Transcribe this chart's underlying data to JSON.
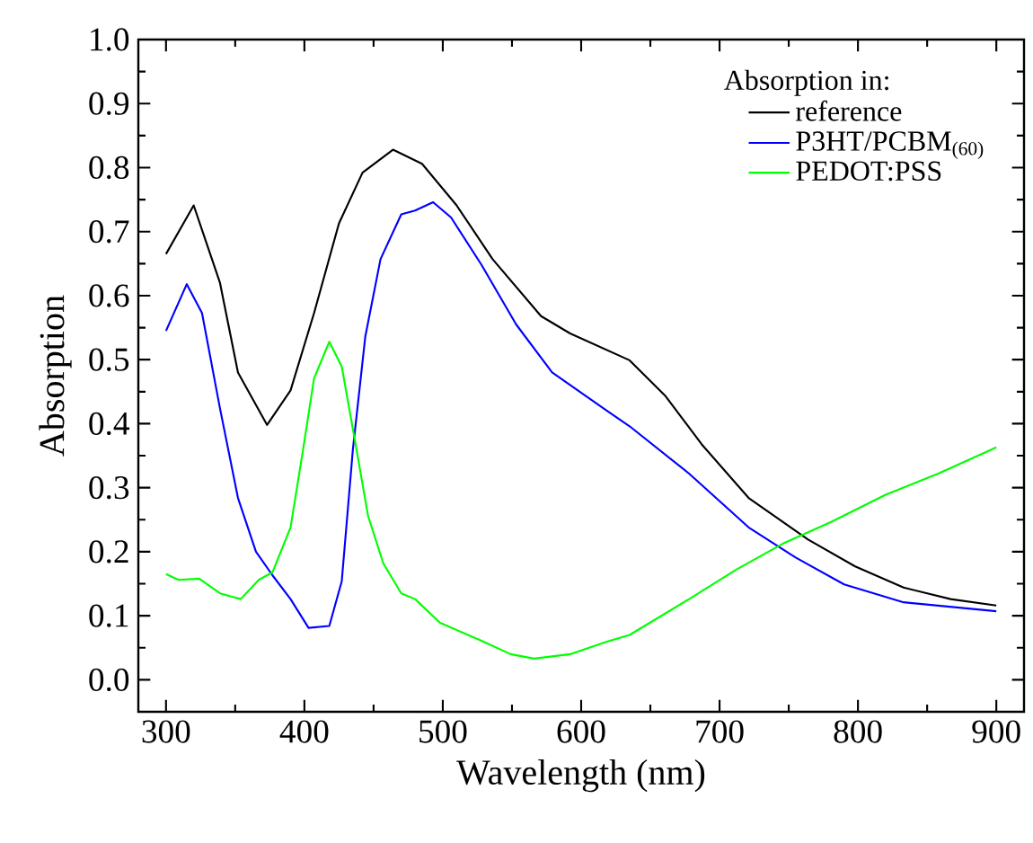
{
  "chart_data": {
    "type": "line",
    "xlabel": "Wavelength (nm)",
    "ylabel": "Absorption",
    "legend_title": "Absorption in:",
    "legend": "top right",
    "xlim": [
      280,
      920
    ],
    "ylim": [
      -0.05,
      1.0
    ],
    "xticks": [
      300,
      400,
      500,
      600,
      700,
      800,
      900
    ],
    "yticks": [
      {
        "value": 0,
        "label": "0.0"
      },
      {
        "value": 0.1,
        "label": "0.1"
      },
      {
        "value": 0.2,
        "label": "0.2"
      },
      {
        "value": 0.3,
        "label": "0.3"
      },
      {
        "value": 0.4,
        "label": "0.4"
      },
      {
        "value": 0.5,
        "label": "0.5"
      },
      {
        "value": 0.6,
        "label": "0.6"
      },
      {
        "value": 0.7,
        "label": "0.7"
      },
      {
        "value": 0.8,
        "label": "0.8"
      },
      {
        "value": 0.9,
        "label": "0.9"
      },
      {
        "value": 1,
        "label": "1.0"
      }
    ],
    "series": [
      {
        "name": "reference",
        "color": "#000000",
        "x": [
          300,
          320,
          339,
          352,
          373,
          390,
          407,
          425,
          442,
          464,
          485,
          510,
          536,
          571,
          592,
          635,
          661,
          687,
          721,
          764,
          798,
          833,
          867,
          900
        ],
        "values": [
          0.665,
          0.741,
          0.62,
          0.48,
          0.398,
          0.452,
          0.573,
          0.713,
          0.792,
          0.828,
          0.806,
          0.741,
          0.657,
          0.568,
          0.541,
          0.499,
          0.443,
          0.368,
          0.284,
          0.219,
          0.177,
          0.144,
          0.126,
          0.116
        ]
      },
      {
        "name": "P3HT/PCBM$_{(60)}$",
        "color": "#0000ff",
        "x": [
          300,
          315,
          326,
          339,
          352,
          365,
          377,
          390,
          403,
          418,
          427,
          435,
          444,
          455,
          470,
          480,
          493,
          506,
          528,
          553,
          579,
          618,
          635,
          678,
          721,
          755,
          790,
          833,
          900
        ],
        "values": [
          0.545,
          0.618,
          0.573,
          0.424,
          0.284,
          0.2,
          0.163,
          0.126,
          0.081,
          0.084,
          0.154,
          0.359,
          0.536,
          0.657,
          0.727,
          0.733,
          0.746,
          0.722,
          0.648,
          0.555,
          0.48,
          0.421,
          0.396,
          0.322,
          0.238,
          0.191,
          0.149,
          0.121,
          0.107
        ]
      },
      {
        "name": "PEDOT:PSS",
        "color": "#00ff00",
        "x": [
          300,
          309,
          324,
          339,
          354,
          367,
          377,
          390,
          399,
          407,
          418,
          427,
          437,
          446,
          457,
          470,
          480,
          498,
          528,
          549,
          566,
          592,
          618,
          635,
          678,
          712,
          747,
          781,
          820,
          858,
          900
        ],
        "values": [
          0.165,
          0.156,
          0.158,
          0.135,
          0.126,
          0.156,
          0.168,
          0.238,
          0.359,
          0.471,
          0.528,
          0.489,
          0.368,
          0.256,
          0.182,
          0.135,
          0.126,
          0.089,
          0.061,
          0.04,
          0.033,
          0.04,
          0.059,
          0.07,
          0.126,
          0.172,
          0.214,
          0.247,
          0.289,
          0.322,
          0.363
        ]
      }
    ]
  }
}
